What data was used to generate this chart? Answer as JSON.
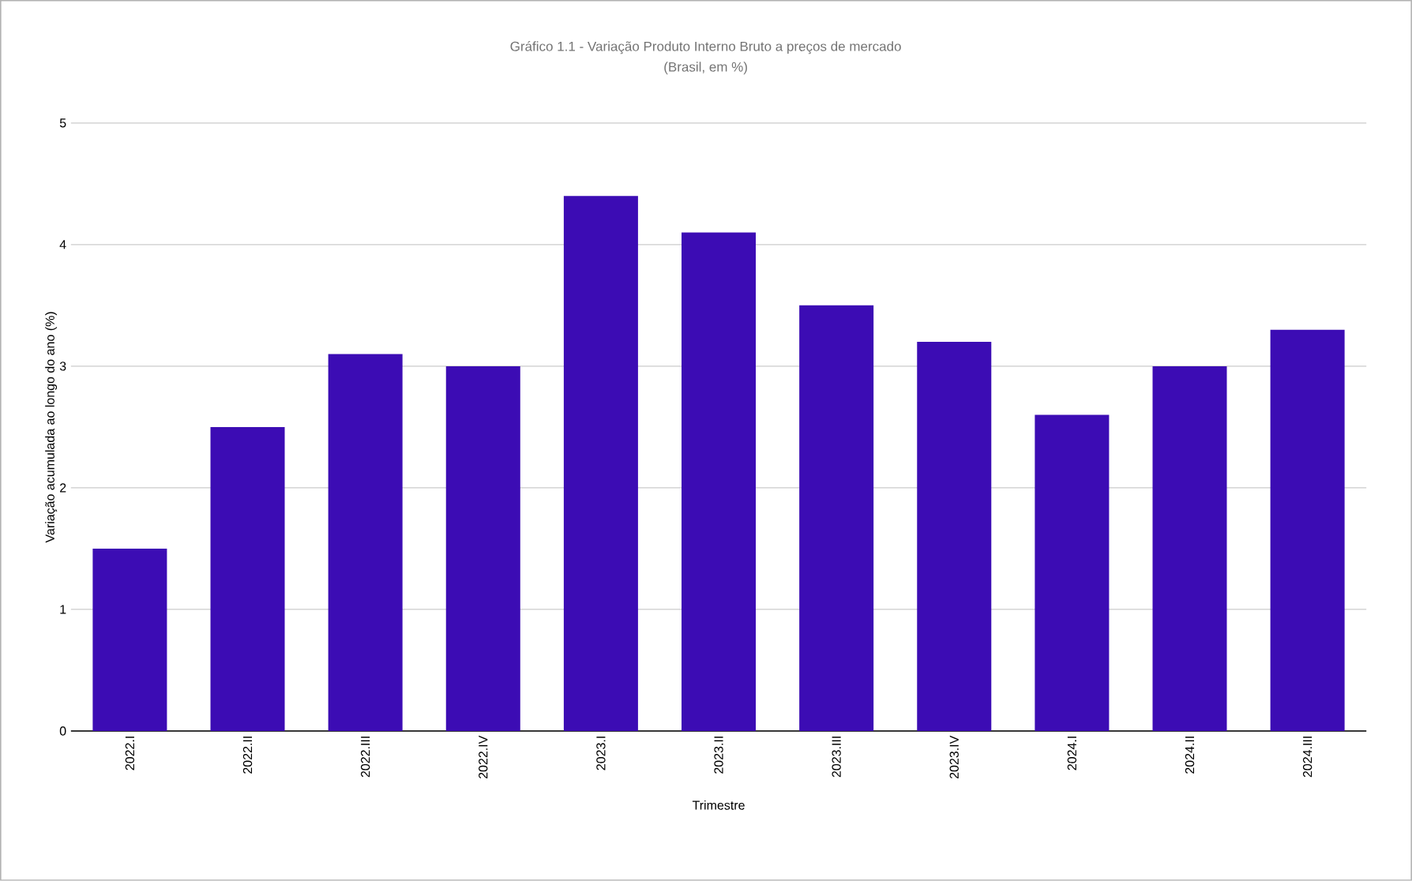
{
  "chart_data": {
    "type": "bar",
    "title": "Gráfico 1.1 - Variação Produto Interno Bruto a preços de mercado",
    "subtitle": "(Brasil, em %)",
    "xlabel": "Trimestre",
    "ylabel": "Variação acumulada ao longo do ano (%)",
    "categories": [
      "2022.I",
      "2022.II",
      "2022.III",
      "2022.IV",
      "2023.I",
      "2023.II",
      "2023.III",
      "2023.IV",
      "2024.I",
      "2024.II",
      "2024.III"
    ],
    "values": [
      1.5,
      2.5,
      3.1,
      3.0,
      4.4,
      4.1,
      3.5,
      3.2,
      2.6,
      3.0,
      3.3
    ],
    "color": "#3c0cb4",
    "ylim": [
      0,
      5
    ],
    "yticks": [
      0,
      1,
      2,
      3,
      4,
      5
    ],
    "grid": "y"
  }
}
